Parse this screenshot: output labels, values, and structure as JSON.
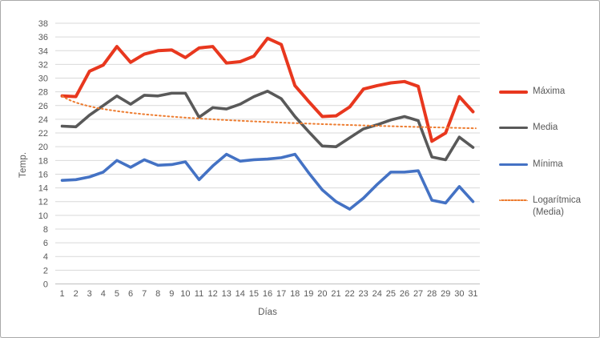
{
  "chart_data": {
    "type": "line",
    "title": "",
    "xlabel": "Días",
    "ylabel": "Temp.",
    "x": [
      1,
      2,
      3,
      4,
      5,
      6,
      7,
      8,
      9,
      10,
      11,
      12,
      13,
      14,
      15,
      16,
      17,
      18,
      19,
      20,
      21,
      22,
      23,
      24,
      25,
      26,
      27,
      28,
      29,
      30,
      31
    ],
    "y_ticks": [
      0,
      2,
      4,
      6,
      8,
      10,
      12,
      14,
      16,
      18,
      20,
      22,
      24,
      26,
      28,
      30,
      32,
      34,
      36,
      38
    ],
    "ylim": [
      0,
      38
    ],
    "grid": true,
    "legend_position": "right",
    "series": [
      {
        "name": "Máxima",
        "color": "#e8371e",
        "width": 4,
        "values": [
          27.4,
          27.3,
          31.0,
          31.9,
          34.6,
          32.3,
          33.5,
          34.0,
          34.1,
          33.0,
          34.4,
          34.6,
          32.2,
          32.4,
          33.2,
          35.8,
          34.9,
          28.9,
          26.6,
          24.4,
          24.5,
          25.8,
          28.4,
          28.9,
          29.3,
          29.5,
          28.8,
          20.8,
          22.0,
          27.3,
          25.1
        ]
      },
      {
        "name": "Media",
        "color": "#595959",
        "width": 3.6,
        "values": [
          23.0,
          22.9,
          24.6,
          26.0,
          27.4,
          26.2,
          27.5,
          27.4,
          27.8,
          27.8,
          24.3,
          25.7,
          25.5,
          26.2,
          27.3,
          28.1,
          27.0,
          24.4,
          22.2,
          20.1,
          20.0,
          21.3,
          22.6,
          23.2,
          23.9,
          24.4,
          23.8,
          18.5,
          18.1,
          21.4,
          19.9
        ]
      },
      {
        "name": "Mínima",
        "color": "#4472c4",
        "width": 3.6,
        "values": [
          15.1,
          15.2,
          15.6,
          16.3,
          18.0,
          17.0,
          18.1,
          17.3,
          17.4,
          17.8,
          15.2,
          17.2,
          18.9,
          17.9,
          18.1,
          18.2,
          18.4,
          18.9,
          16.2,
          13.7,
          12.0,
          10.9,
          12.5,
          14.5,
          16.3,
          16.3,
          16.5,
          12.2,
          11.8,
          14.2,
          12.0
        ]
      }
    ],
    "trendline": {
      "name": "Logarítmica (Media)",
      "source_series": "Media",
      "color": "#ed7d31",
      "style": "dotted",
      "formula": "y = a + b·ln(x)",
      "a": 27.4,
      "b": -1.37
    },
    "colors": {
      "gridline": "#d9d9d9",
      "axis_line": "#bfbfbf",
      "tick_text": "#595959",
      "frame_border": "#a9a9a9"
    }
  }
}
